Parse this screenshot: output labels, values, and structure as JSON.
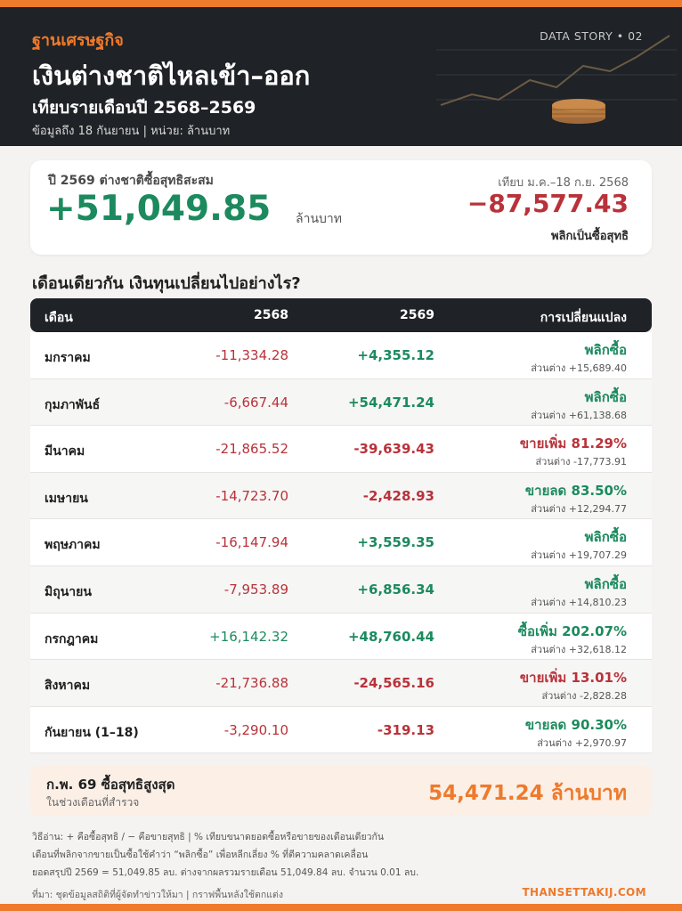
{
  "header": {
    "brand": "ฐานเศรษฐกิจ",
    "story_tag": "DATA STORY • 02",
    "title": "เงินต่างชาติไหลเข้า–ออก",
    "subtitle": "เทียบรายเดือนปี 2568–2569",
    "as_of": "ข้อมูลถึง 18 กันยายน | หน่วย: ล้านบาท"
  },
  "summary": {
    "label": "ปี 2569 ต่างชาติซื้อสุทธิสะสม",
    "value": "+51,049.85",
    "unit": "ล้านบาท",
    "compare_label": "เทียบ ม.ค.–18 ก.ย. 2568",
    "compare_value": "−87,577.43",
    "compare_note": "พลิกเป็นซื้อสุทธิ"
  },
  "section_title": "เดือนเดียวกัน เงินทุนเปลี่ยนไปอย่างไร?",
  "table": {
    "headers": {
      "month": "เดือน",
      "y2568": "2568",
      "y2569": "2569",
      "change": "การเปลี่ยนแปลง"
    },
    "rows": [
      {
        "month": "มกราคม",
        "v2568": "-11,334.28",
        "v2568_sign": "neg",
        "v2569": "+4,355.12",
        "v2569_sign": "pos",
        "change": "พลิกซื้อ",
        "change_sign": "pos",
        "diff": "ส่วนต่าง +15,689.40"
      },
      {
        "month": "กุมภาพันธ์",
        "v2568": "-6,667.44",
        "v2568_sign": "neg",
        "v2569": "+54,471.24",
        "v2569_sign": "pos",
        "change": "พลิกซื้อ",
        "change_sign": "pos",
        "diff": "ส่วนต่าง +61,138.68"
      },
      {
        "month": "มีนาคม",
        "v2568": "-21,865.52",
        "v2568_sign": "neg",
        "v2569": "-39,639.43",
        "v2569_sign": "neg",
        "change": "ขายเพิ่ม 81.29%",
        "change_sign": "neg",
        "diff": "ส่วนต่าง -17,773.91"
      },
      {
        "month": "เมษายน",
        "v2568": "-14,723.70",
        "v2568_sign": "neg",
        "v2569": "-2,428.93",
        "v2569_sign": "neg",
        "change": "ขายลด 83.50%",
        "change_sign": "pos",
        "diff": "ส่วนต่าง +12,294.77"
      },
      {
        "month": "พฤษภาคม",
        "v2568": "-16,147.94",
        "v2568_sign": "neg",
        "v2569": "+3,559.35",
        "v2569_sign": "pos",
        "change": "พลิกซื้อ",
        "change_sign": "pos",
        "diff": "ส่วนต่าง +19,707.29"
      },
      {
        "month": "มิถุนายน",
        "v2568": "-7,953.89",
        "v2568_sign": "neg",
        "v2569": "+6,856.34",
        "v2569_sign": "pos",
        "change": "พลิกซื้อ",
        "change_sign": "pos",
        "diff": "ส่วนต่าง +14,810.23"
      },
      {
        "month": "กรกฎาคม",
        "v2568": "+16,142.32",
        "v2568_sign": "pos",
        "v2569": "+48,760.44",
        "v2569_sign": "pos",
        "change": "ซื้อเพิ่ม 202.07%",
        "change_sign": "pos",
        "diff": "ส่วนต่าง +32,618.12"
      },
      {
        "month": "สิงหาคม",
        "v2568": "-21,736.88",
        "v2568_sign": "neg",
        "v2569": "-24,565.16",
        "v2569_sign": "neg",
        "change": "ขายเพิ่ม 13.01%",
        "change_sign": "neg",
        "diff": "ส่วนต่าง -2,828.28"
      },
      {
        "month": "กันยายน (1–18)",
        "v2568": "-3,290.10",
        "v2568_sign": "neg",
        "v2569": "-319.13",
        "v2569_sign": "neg",
        "change": "ขายลด 90.30%",
        "change_sign": "pos",
        "diff": "ส่วนต่าง +2,970.97"
      }
    ]
  },
  "highlight": {
    "title": "ก.พ. 69 ซื้อสุทธิสูงสุด",
    "subtitle": "ในช่วงเดือนที่สำรวจ",
    "value": "54,471.24 ล้านบาท"
  },
  "notes": [
    "วิธีอ่าน: + คือซื้อสุทธิ / − คือขายสุทธิ | % เทียบขนาดยอดซื้อหรือขายของเดือนเดียวกัน",
    "เดือนที่พลิกจากขายเป็นซื้อใช้คำว่า “พลิกซื้อ” เพื่อหลีกเลี่ยง % ที่ตีความคลาดเคลื่อน",
    "ยอดสรุปปี 2569 = 51,049.85 ลบ. ต่างจากผลรวมรายเดือน 51,049.84 ลบ. จำนวน 0.01 ลบ."
  ],
  "footer": {
    "source": "ที่มา: ชุดข้อมูลสถิติที่ผู้จัดทำข่าวให้มา | กราฟพื้นหลังใช้ตกแต่ง",
    "site": "THANSETTAKIJ.COM"
  },
  "colors": {
    "accent": "#ee7a2c",
    "positive": "#1c8a5e",
    "negative": "#b9323a",
    "header_bg": "#1f2226"
  }
}
